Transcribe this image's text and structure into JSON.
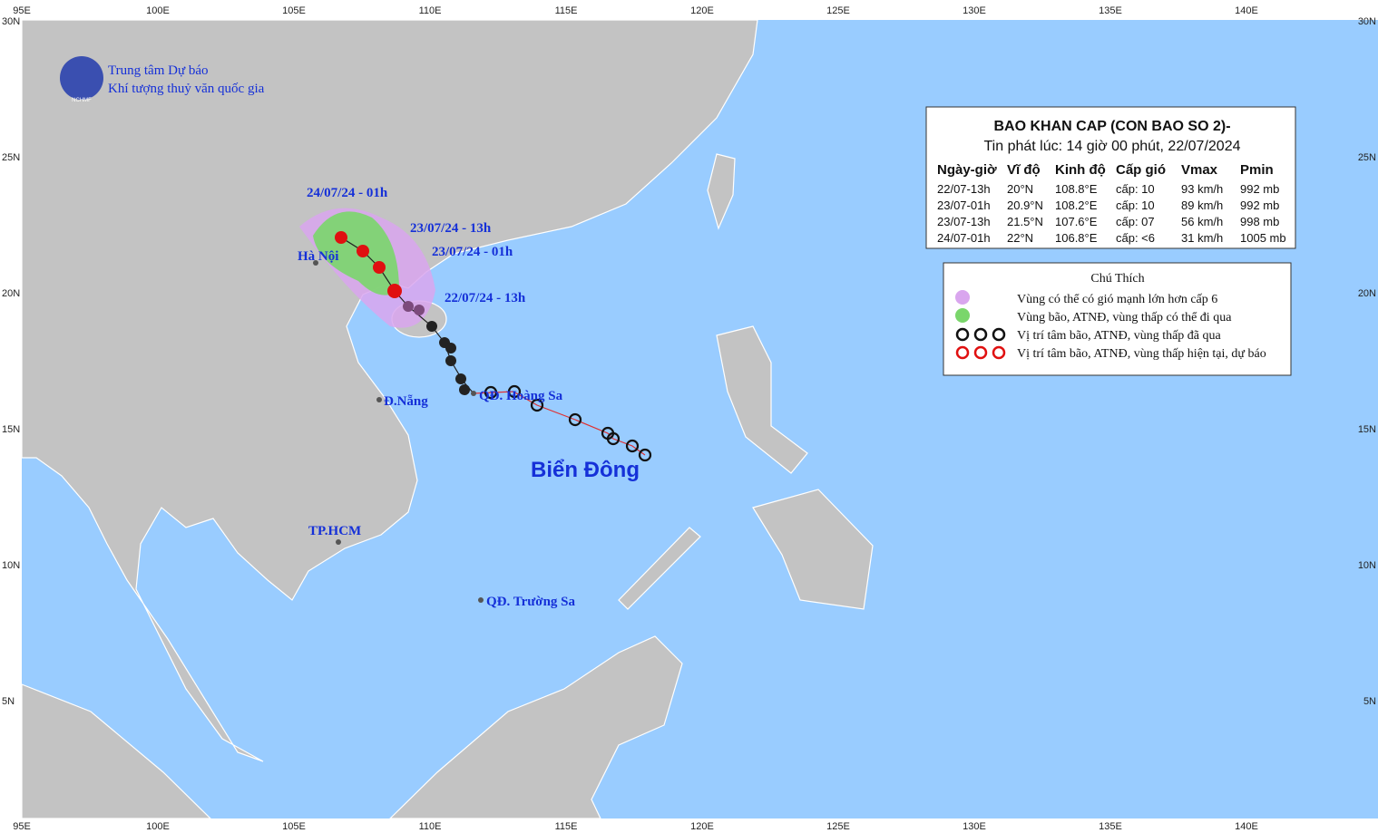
{
  "org": {
    "line1": "Trung tâm Dự báo",
    "line2": "Khí tượng thuỷ văn quốc gia",
    "logo": "NCHMF"
  },
  "axes": {
    "lon_labels": [
      "95E",
      "100E",
      "105E",
      "110E",
      "115E",
      "120E",
      "125E",
      "130E",
      "135E",
      "140E"
    ],
    "lat_labels": [
      "30N",
      "25N",
      "20N",
      "15N",
      "10N",
      "5N"
    ]
  },
  "info": {
    "title": "BAO KHAN CAP (CON BAO SO 2)-",
    "subtitle": "Tin phát lúc: 14 giờ 00 phút, 22/07/2024",
    "headers": [
      "Ngày-giờ",
      "Vĩ độ",
      "Kinh độ",
      "Cấp gió",
      "Vmax",
      "Pmin"
    ],
    "rows": [
      [
        "22/07-13h",
        "20°N",
        "108.8°E",
        "cấp: 10",
        "93 km/h",
        "992 mb"
      ],
      [
        "23/07-01h",
        "20.9°N",
        "108.2°E",
        "cấp: 10",
        "89 km/h",
        "992 mb"
      ],
      [
        "23/07-13h",
        "21.5°N",
        "107.6°E",
        "cấp: 07",
        "56 km/h",
        "998 mb"
      ],
      [
        "24/07-01h",
        "22°N",
        "106.8°E",
        "cấp: <6",
        "31 km/h",
        "1005 mb"
      ]
    ]
  },
  "legend": {
    "title": "Chú Thích",
    "items": [
      "Vùng có thể có gió mạnh lớn hơn cấp 6",
      "Vùng bão, ATNĐ, vùng thấp có thể đi qua",
      "Vị trí tâm bão, ATNĐ, vùng thấp đã qua",
      "Vị trí tâm bão, ATNĐ, vùng thấp hiện tại, dự báo"
    ]
  },
  "forecast_labels": [
    "24/07/24 - 01h",
    "23/07/24 - 13h",
    "23/07/24 - 01h",
    "22/07/24 - 13h"
  ],
  "places": {
    "hanoi": "Hà Nội",
    "danang": "Đ.Nẵng",
    "hcm": "TP.HCM",
    "hoangsa": "QĐ. Hoàng Sa",
    "truongsa": "QĐ. Trường Sa",
    "sea": "Biển Đông"
  }
}
